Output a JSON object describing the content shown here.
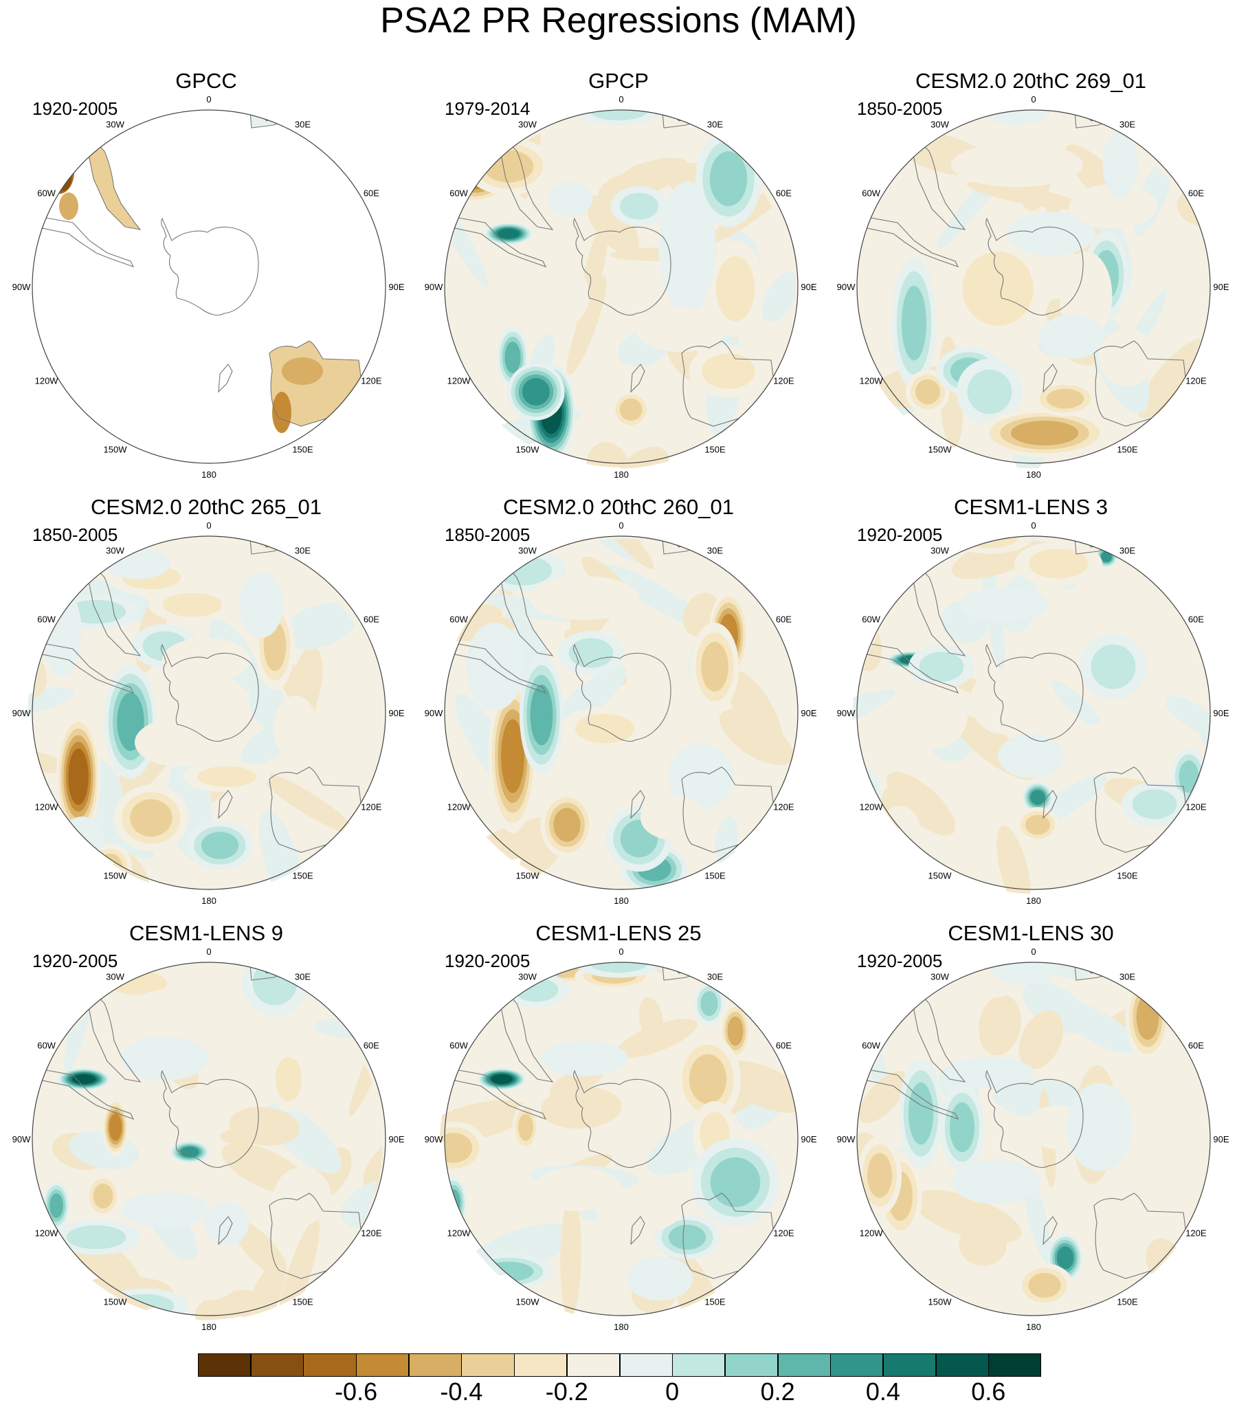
{
  "title": "PSA2 PR Regressions (MAM)",
  "longitude_labels": [
    "0",
    "30E",
    "60E",
    "90E",
    "120E",
    "150E",
    "180",
    "150W",
    "120W",
    "90W",
    "60W",
    "30W"
  ],
  "panels": [
    {
      "title": "GPCC",
      "period": "1920-2005",
      "land_only": true
    },
    {
      "title": "GPCP",
      "period": "1979-2014",
      "land_only": false
    },
    {
      "title": "CESM2.0 20thC 269_01",
      "period": "1850-2005",
      "land_only": false
    },
    {
      "title": "CESM2.0 20thC 265_01",
      "period": "1850-2005",
      "land_only": false
    },
    {
      "title": "CESM2.0 20thC 260_01",
      "period": "1850-2005",
      "land_only": false
    },
    {
      "title": "CESM1-LENS 3",
      "period": "1920-2005",
      "land_only": false
    },
    {
      "title": "CESM1-LENS 9",
      "period": "1920-2005",
      "land_only": false
    },
    {
      "title": "CESM1-LENS 25",
      "period": "1920-2005",
      "land_only": false
    },
    {
      "title": "CESM1-LENS 30",
      "period": "1920-2005",
      "land_only": false
    }
  ],
  "colorbar": {
    "colors": [
      "#5c3307",
      "#865010",
      "#a86a1a",
      "#c48a34",
      "#d7ae63",
      "#ead098",
      "#f5e7c4",
      "#f5f0e4",
      "#e6f1f0",
      "#c3e7e1",
      "#93d4ca",
      "#5fb6aa",
      "#32958b",
      "#167a6f",
      "#05584d",
      "#003d33"
    ],
    "labels": [
      "-0.6",
      "-0.4",
      "-0.2",
      "0",
      "0.2",
      "0.4",
      "0.6"
    ]
  }
}
